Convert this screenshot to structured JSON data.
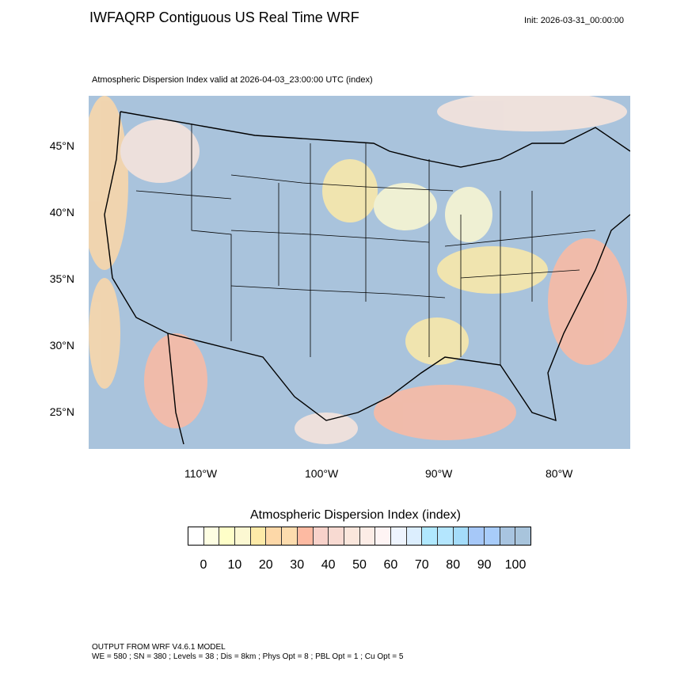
{
  "header": {
    "title": "IWFAQRP Contiguous US Real Time WRF",
    "init": "Init: 2026-03-31_00:00:00"
  },
  "plot": {
    "subtitle": "Atmospheric Dispersion Index valid at 2026-04-03_23:00:00 UTC   (index)",
    "lat_labels": [
      "45°N",
      "40°N",
      "35°N",
      "30°N",
      "25°N"
    ],
    "lon_labels": [
      "110°W",
      "100°W",
      "90°W",
      "80°W"
    ]
  },
  "colorbar": {
    "title": "Atmospheric Dispersion Index  (index)",
    "labels": [
      "0",
      "10",
      "20",
      "30",
      "40",
      "50",
      "60",
      "70",
      "80",
      "90",
      "100"
    ],
    "colors": [
      "#ffffff",
      "#fefee2",
      "#fefec8",
      "#fcf8d2",
      "#fdeaa8",
      "#fdd8a8",
      "#fddcae",
      "#fdbaa2",
      "#f8d2ca",
      "#f8dad2",
      "#fae6dc",
      "#fcece6",
      "#fef4f4",
      "#eef4fe",
      "#dceefe",
      "#b0e8fe",
      "#b4e6fe",
      "#a4dcfa",
      "#a6c8f8",
      "#a8ccfa",
      "#a8c4e0",
      "#a8c4dc"
    ]
  },
  "footer": {
    "line1": "OUTPUT FROM WRF V4.6.1 MODEL",
    "line2": "WE = 580 ; SN = 380 ; Levels = 38 ; Dis = 8km ; Phys Opt = 8 ; PBL Opt = 1 ; Cu Opt = 5"
  }
}
